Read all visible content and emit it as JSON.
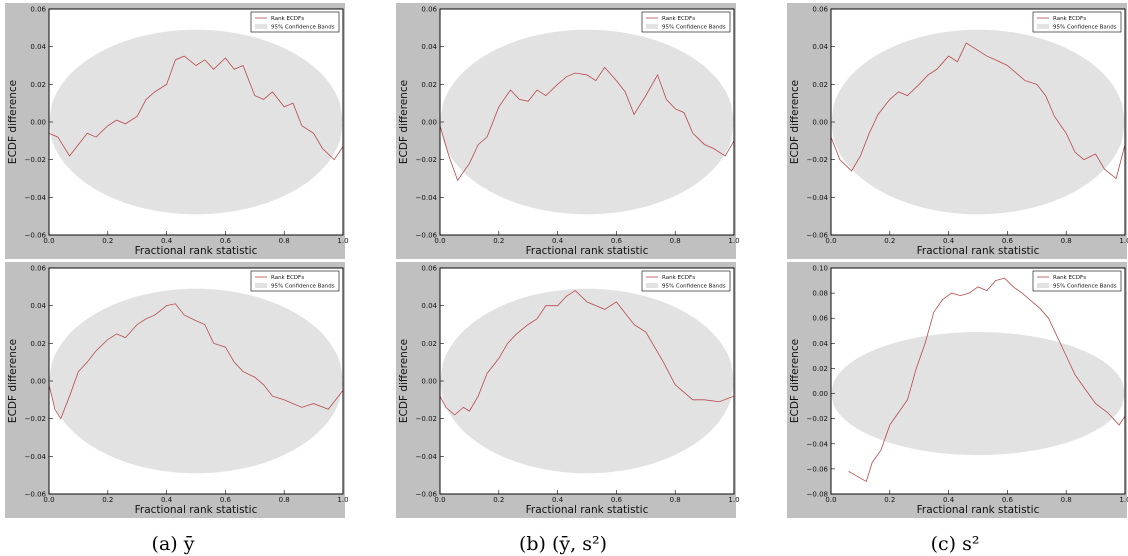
{
  "figure": {
    "captions": [
      "(a) ȳ",
      "(b) (ȳ, s²)",
      "(c) s²"
    ]
  },
  "chart_data": [
    {
      "type": "line",
      "panel": "top-left",
      "xlabel": "Fractional rank statistic",
      "ylabel": "ECDF difference",
      "xlim": [
        0.0,
        1.0
      ],
      "ylim": [
        -0.06,
        0.06
      ],
      "xticks": [
        "0.0",
        "0.2",
        "0.4",
        "0.6",
        "0.8",
        "1.0"
      ],
      "yticks": [
        "−0.06",
        "−0.04",
        "−0.02",
        "0.00",
        "0.02",
        "0.04",
        "0.06"
      ],
      "band": {
        "name": "95% Confidence Bands",
        "half_width_max": 0.049
      },
      "legend": {
        "placement": "top-right",
        "entries": [
          "Rank ECDFs",
          "95% Confidence Bands"
        ]
      },
      "series": [
        {
          "name": "Rank ECDFs",
          "x": [
            0.0,
            0.03,
            0.07,
            0.1,
            0.13,
            0.16,
            0.2,
            0.23,
            0.26,
            0.3,
            0.33,
            0.36,
            0.4,
            0.43,
            0.46,
            0.5,
            0.53,
            0.56,
            0.6,
            0.63,
            0.66,
            0.7,
            0.73,
            0.76,
            0.8,
            0.83,
            0.86,
            0.9,
            0.93,
            0.97,
            1.0
          ],
          "y": [
            -0.006,
            -0.008,
            -0.018,
            -0.012,
            -0.006,
            -0.008,
            -0.002,
            0.001,
            -0.001,
            0.003,
            0.012,
            0.016,
            0.02,
            0.033,
            0.035,
            0.03,
            0.033,
            0.028,
            0.034,
            0.028,
            0.03,
            0.014,
            0.012,
            0.016,
            0.008,
            0.01,
            -0.002,
            -0.006,
            -0.014,
            -0.02,
            -0.013
          ]
        }
      ]
    },
    {
      "type": "line",
      "panel": "top-middle",
      "xlabel": "Fractional rank statistic",
      "ylabel": "ECDF difference",
      "xlim": [
        0.0,
        1.0
      ],
      "ylim": [
        -0.06,
        0.06
      ],
      "xticks": [
        "0.0",
        "0.2",
        "0.4",
        "0.6",
        "0.8",
        "1.0"
      ],
      "yticks": [
        "−0.06",
        "−0.04",
        "−0.02",
        "0.00",
        "0.02",
        "0.04",
        "0.06"
      ],
      "band": {
        "name": "95% Confidence Bands",
        "half_width_max": 0.049
      },
      "legend": {
        "placement": "top-right",
        "entries": [
          "Rank ECDFs",
          "95% Confidence Bands"
        ]
      },
      "series": [
        {
          "name": "Rank ECDFs",
          "x": [
            0.0,
            0.03,
            0.06,
            0.1,
            0.13,
            0.16,
            0.2,
            0.24,
            0.27,
            0.3,
            0.33,
            0.36,
            0.4,
            0.43,
            0.46,
            0.5,
            0.53,
            0.56,
            0.6,
            0.63,
            0.66,
            0.7,
            0.74,
            0.77,
            0.8,
            0.83,
            0.86,
            0.9,
            0.93,
            0.97,
            1.0
          ],
          "y": [
            -0.002,
            -0.018,
            -0.031,
            -0.022,
            -0.012,
            -0.008,
            0.008,
            0.017,
            0.012,
            0.011,
            0.017,
            0.014,
            0.02,
            0.024,
            0.026,
            0.025,
            0.022,
            0.029,
            0.022,
            0.016,
            0.004,
            0.014,
            0.025,
            0.012,
            0.007,
            0.005,
            -0.006,
            -0.012,
            -0.014,
            -0.018,
            -0.01
          ]
        }
      ]
    },
    {
      "type": "line",
      "panel": "top-right",
      "xlabel": "Fractional rank statistic",
      "ylabel": "ECDF difference",
      "xlim": [
        0.0,
        1.0
      ],
      "ylim": [
        -0.06,
        0.06
      ],
      "xticks": [
        "0.0",
        "0.2",
        "0.4",
        "0.6",
        "0.8",
        "1.0"
      ],
      "yticks": [
        "−0.06",
        "−0.04",
        "−0.02",
        "0.00",
        "0.02",
        "0.04",
        "0.06"
      ],
      "band": {
        "name": "95% Confidence Bands",
        "half_width_max": 0.049
      },
      "legend": {
        "placement": "top-right",
        "entries": [
          "Rank ECDFs",
          "95% Confidence Bands"
        ]
      },
      "series": [
        {
          "name": "Rank ECDFs",
          "x": [
            0.0,
            0.03,
            0.07,
            0.1,
            0.13,
            0.16,
            0.2,
            0.23,
            0.26,
            0.3,
            0.33,
            0.36,
            0.4,
            0.43,
            0.46,
            0.5,
            0.53,
            0.56,
            0.6,
            0.63,
            0.66,
            0.7,
            0.73,
            0.76,
            0.8,
            0.83,
            0.86,
            0.9,
            0.93,
            0.97,
            1.0
          ],
          "y": [
            -0.008,
            -0.02,
            -0.026,
            -0.018,
            -0.006,
            0.004,
            0.012,
            0.016,
            0.014,
            0.02,
            0.025,
            0.028,
            0.035,
            0.032,
            0.042,
            0.038,
            0.035,
            0.033,
            0.03,
            0.026,
            0.022,
            0.02,
            0.014,
            0.003,
            -0.006,
            -0.016,
            -0.02,
            -0.017,
            -0.025,
            -0.03,
            -0.012
          ]
        }
      ]
    },
    {
      "type": "line",
      "panel": "bottom-left",
      "xlabel": "Fractional rank statistic",
      "ylabel": "ECDF difference",
      "xlim": [
        0.0,
        1.0
      ],
      "ylim": [
        -0.06,
        0.06
      ],
      "xticks": [
        "0.0",
        "0.2",
        "0.4",
        "0.6",
        "0.8",
        "1.0"
      ],
      "yticks": [
        "−0.06",
        "−0.04",
        "−0.02",
        "0.00",
        "0.02",
        "0.04",
        "0.06"
      ],
      "band": {
        "name": "95% Confidence Bands",
        "half_width_max": 0.049
      },
      "legend": {
        "placement": "top-right",
        "entries": [
          "Rank ECDFs",
          "95% Confidence Bands"
        ]
      },
      "series": [
        {
          "name": "Rank ECDFs",
          "x": [
            0.0,
            0.02,
            0.04,
            0.07,
            0.1,
            0.13,
            0.16,
            0.2,
            0.23,
            0.26,
            0.3,
            0.33,
            0.36,
            0.4,
            0.43,
            0.46,
            0.5,
            0.53,
            0.56,
            0.6,
            0.63,
            0.66,
            0.7,
            0.73,
            0.76,
            0.8,
            0.83,
            0.86,
            0.9,
            0.95,
            1.0
          ],
          "y": [
            -0.002,
            -0.015,
            -0.02,
            -0.008,
            0.005,
            0.01,
            0.016,
            0.022,
            0.025,
            0.023,
            0.03,
            0.033,
            0.035,
            0.04,
            0.041,
            0.035,
            0.032,
            0.03,
            0.02,
            0.018,
            0.01,
            0.005,
            0.002,
            -0.002,
            -0.008,
            -0.01,
            -0.012,
            -0.014,
            -0.012,
            -0.015,
            -0.005
          ]
        }
      ]
    },
    {
      "type": "line",
      "panel": "bottom-middle",
      "xlabel": "Fractional rank statistic",
      "ylabel": "ECDF difference",
      "xlim": [
        0.0,
        1.0
      ],
      "ylim": [
        -0.06,
        0.06
      ],
      "xticks": [
        "0.0",
        "0.2",
        "0.4",
        "0.6",
        "0.8",
        "1.0"
      ],
      "yticks": [
        "−0.06",
        "−0.04",
        "−0.02",
        "0.00",
        "0.02",
        "0.04",
        "0.06"
      ],
      "band": {
        "name": "95% Confidence Bands",
        "half_width_max": 0.049
      },
      "legend": {
        "placement": "top-right",
        "entries": [
          "Rank ECDFs",
          "95% Confidence Bands"
        ]
      },
      "series": [
        {
          "name": "Rank ECDFs",
          "x": [
            0.0,
            0.02,
            0.05,
            0.08,
            0.1,
            0.13,
            0.16,
            0.2,
            0.23,
            0.26,
            0.3,
            0.33,
            0.36,
            0.4,
            0.43,
            0.46,
            0.5,
            0.53,
            0.56,
            0.6,
            0.63,
            0.66,
            0.7,
            0.73,
            0.76,
            0.8,
            0.83,
            0.86,
            0.9,
            0.95,
            1.0
          ],
          "y": [
            -0.008,
            -0.014,
            -0.018,
            -0.014,
            -0.016,
            -0.008,
            0.004,
            0.012,
            0.02,
            0.025,
            0.03,
            0.033,
            0.04,
            0.04,
            0.045,
            0.048,
            0.042,
            0.04,
            0.038,
            0.042,
            0.036,
            0.03,
            0.026,
            0.018,
            0.01,
            -0.002,
            -0.006,
            -0.01,
            -0.01,
            -0.011,
            -0.008
          ]
        }
      ]
    },
    {
      "type": "line",
      "panel": "bottom-right",
      "xlabel": "Fractional rank statistic",
      "ylabel": "ECDF difference",
      "xlim": [
        0.0,
        1.0
      ],
      "ylim": [
        -0.08,
        0.1
      ],
      "xticks": [
        "0.0",
        "0.2",
        "0.4",
        "0.6",
        "0.8",
        "1.0"
      ],
      "yticks": [
        "−0.08",
        "−0.06",
        "−0.04",
        "−0.02",
        "0.00",
        "0.02",
        "0.04",
        "0.06",
        "0.08",
        "0.10"
      ],
      "band": {
        "name": "95% Confidence Bands",
        "half_width_max": 0.049
      },
      "legend": {
        "placement": "top-right",
        "entries": [
          "Rank ECDFs",
          "95% Confidence Bands"
        ]
      },
      "series": [
        {
          "name": "Rank ECDFs",
          "x": [
            0.06,
            0.09,
            0.12,
            0.14,
            0.17,
            0.2,
            0.23,
            0.26,
            0.29,
            0.32,
            0.35,
            0.38,
            0.41,
            0.44,
            0.47,
            0.5,
            0.53,
            0.56,
            0.59,
            0.62,
            0.65,
            0.68,
            0.71,
            0.74,
            0.77,
            0.8,
            0.83,
            0.86,
            0.9,
            0.94,
            0.98,
            1.0
          ],
          "y": [
            -0.062,
            -0.066,
            -0.07,
            -0.055,
            -0.045,
            -0.025,
            -0.015,
            -0.005,
            0.02,
            0.04,
            0.065,
            0.075,
            0.08,
            0.078,
            0.08,
            0.085,
            0.082,
            0.09,
            0.092,
            0.085,
            0.08,
            0.074,
            0.068,
            0.06,
            0.045,
            0.03,
            0.015,
            0.005,
            -0.008,
            -0.015,
            -0.025,
            -0.018
          ]
        }
      ]
    }
  ]
}
